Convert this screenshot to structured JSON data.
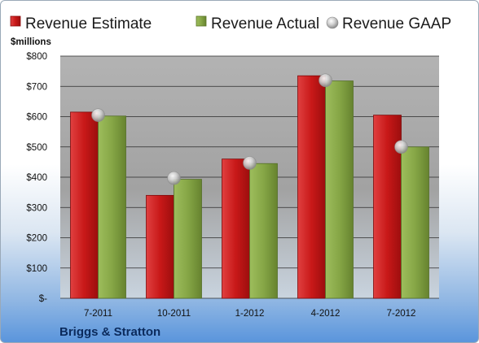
{
  "chart_data": {
    "type": "bar",
    "categories": [
      "7-2011",
      "10-2011",
      "1-2012",
      "4-2012",
      "7-2012"
    ],
    "series": [
      {
        "name": "Revenue Estimate",
        "values": [
          615,
          340,
          460,
          735,
          605
        ],
        "color": "#cc1f1f"
      },
      {
        "name": "Revenue Actual",
        "values": [
          602,
          393,
          445,
          718,
          500
        ],
        "color": "#8aab4a"
      }
    ],
    "markers": {
      "name": "Revenue GAAP",
      "values": [
        605,
        397,
        447,
        720,
        500
      ],
      "color": "#c0c0c0"
    },
    "ylabel": "$millions",
    "ylim": [
      0,
      800
    ],
    "yticks": [
      0,
      100,
      200,
      300,
      400,
      500,
      600,
      700,
      800
    ],
    "ytick_labels": [
      "$-",
      "$100",
      "$200",
      "$300",
      "$400",
      "$500",
      "$600",
      "$700",
      "$800"
    ],
    "grid": true,
    "legend": "top",
    "plot_background": "#a6a6a6"
  },
  "company": "Briggs & Stratton"
}
